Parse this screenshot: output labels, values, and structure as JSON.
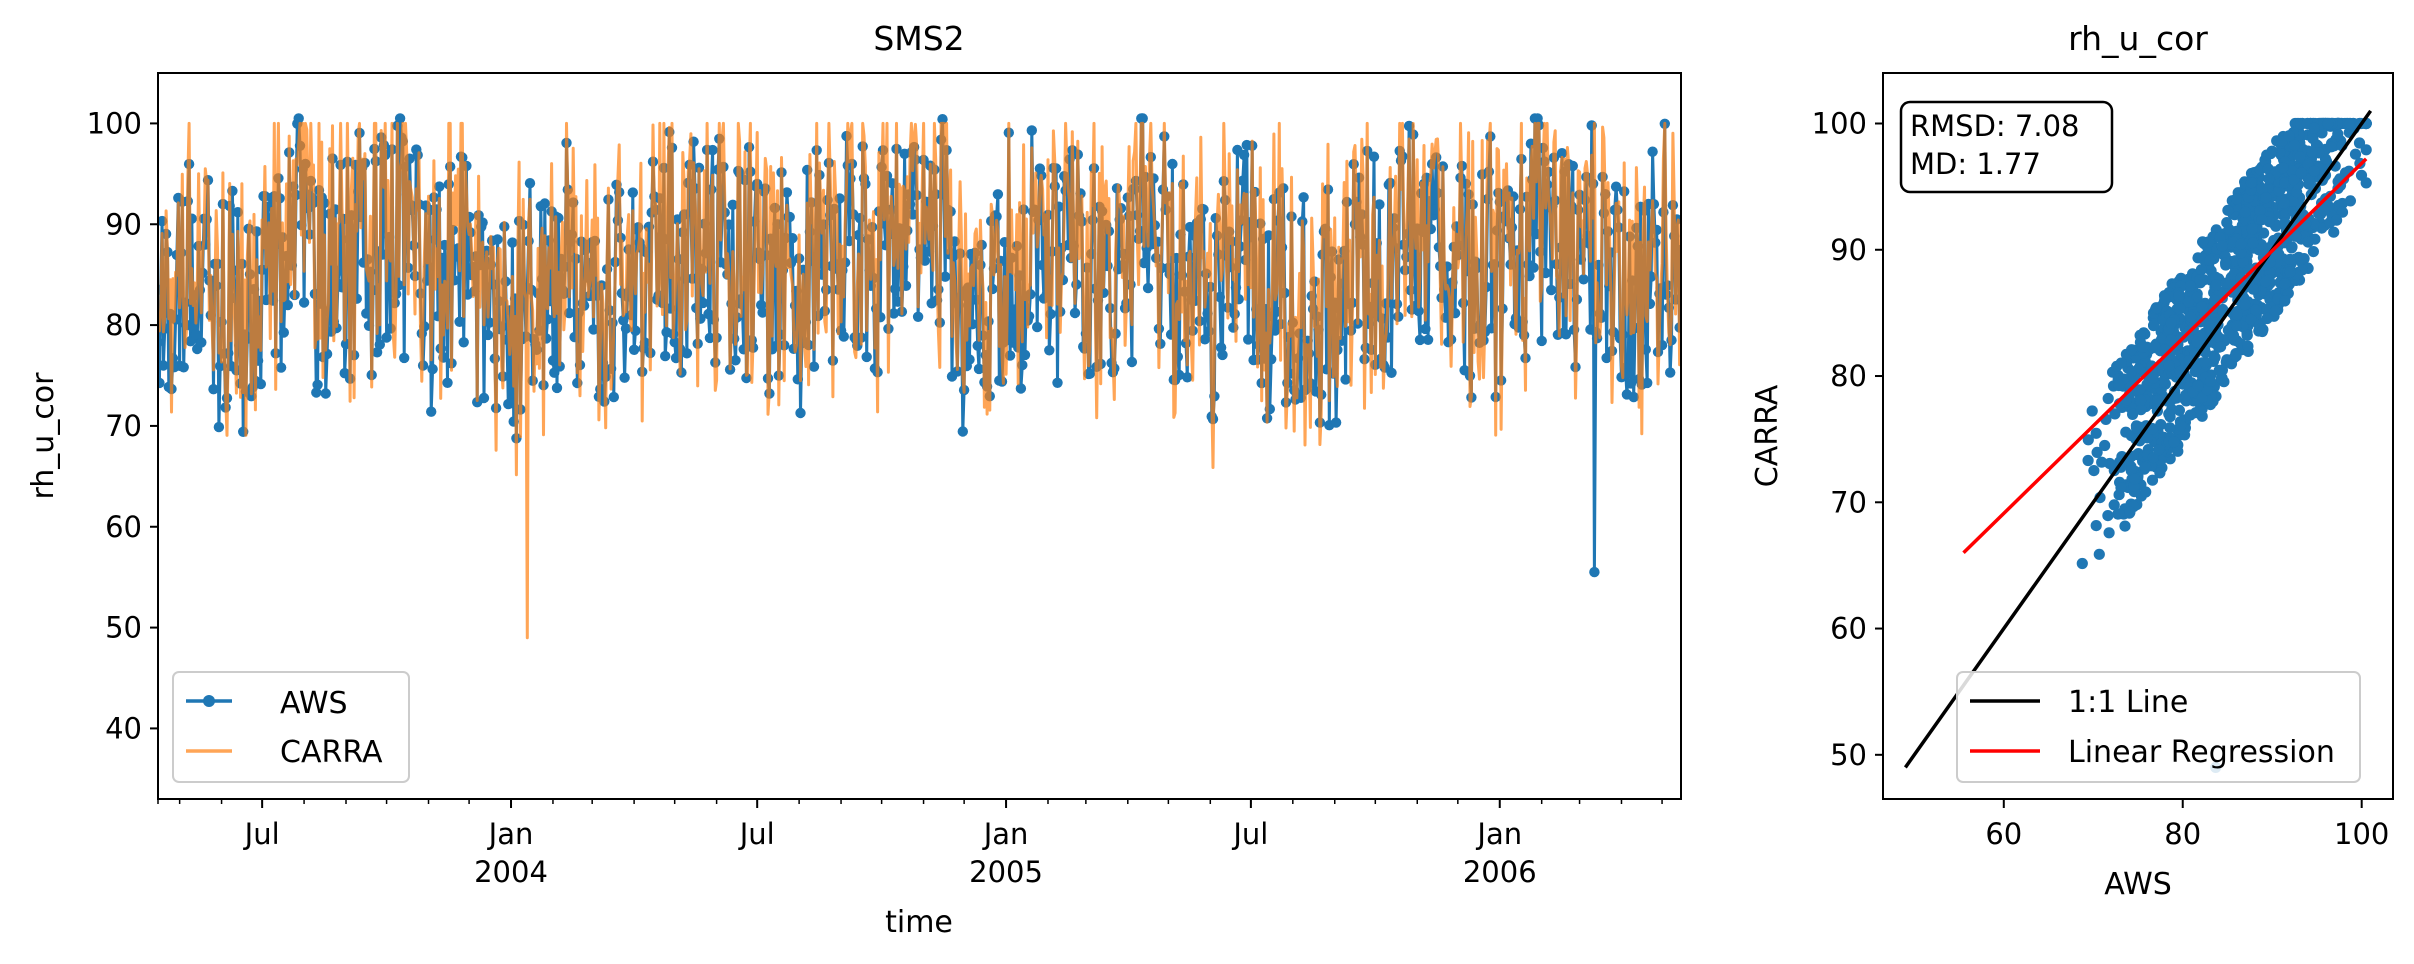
{
  "chart_data": [
    {
      "type": "line",
      "title": "SMS2",
      "xlabel": "time",
      "ylabel": "rh_u_cor",
      "xlim": [
        "2003-04-15",
        "2006-05-15"
      ],
      "ylim": [
        33,
        105
      ],
      "yticks": [
        40,
        50,
        60,
        70,
        80,
        90,
        100
      ],
      "xticks": [
        {
          "date": "2003-07-01",
          "label": "Jul",
          "sublabel": ""
        },
        {
          "date": "2004-01-01",
          "label": "Jan",
          "sublabel": "2004"
        },
        {
          "date": "2004-07-01",
          "label": "Jul",
          "sublabel": ""
        },
        {
          "date": "2005-01-01",
          "label": "Jan",
          "sublabel": "2005"
        },
        {
          "date": "2005-07-01",
          "label": "Jul",
          "sublabel": ""
        },
        {
          "date": "2006-01-01",
          "label": "Jan",
          "sublabel": "2006"
        }
      ],
      "legend_position": "lower-left",
      "series": [
        {
          "name": "AWS",
          "color": "#1f77b4",
          "marker": "circle",
          "period_days": 1,
          "range": [
            64,
            100
          ],
          "min_date": "2006-03-12",
          "min_value": 55.5
        },
        {
          "name": "CARRA",
          "color": "#ff7f0e",
          "opacity": 0.7,
          "marker": "none",
          "period_days": 1,
          "range": [
            63,
            100
          ],
          "min_date": "2004-01-13",
          "min_value": 49
        }
      ]
    },
    {
      "type": "scatter",
      "title": "rh_u_cor",
      "xlabel": "AWS",
      "ylabel": "CARRA",
      "xlim": [
        46.5,
        103.5
      ],
      "ylim": [
        46.5,
        104
      ],
      "xticks": [
        60,
        80,
        100
      ],
      "yticks": [
        50,
        60,
        70,
        80,
        90,
        100
      ],
      "stats_box": {
        "rmsd": "RMSD: 7.08",
        "md": "MD: 1.77"
      },
      "legend_position": "lower-right",
      "scatter_color": "#1f77b4",
      "lines": [
        {
          "name": "1:1 Line",
          "color": "#000000",
          "x": [
            49,
            101
          ],
          "y": [
            49,
            101
          ]
        },
        {
          "name": "Linear Regression",
          "color": "#ff0000",
          "x": [
            55.5,
            100.5
          ],
          "y": [
            66,
            97.2
          ]
        }
      ]
    }
  ]
}
